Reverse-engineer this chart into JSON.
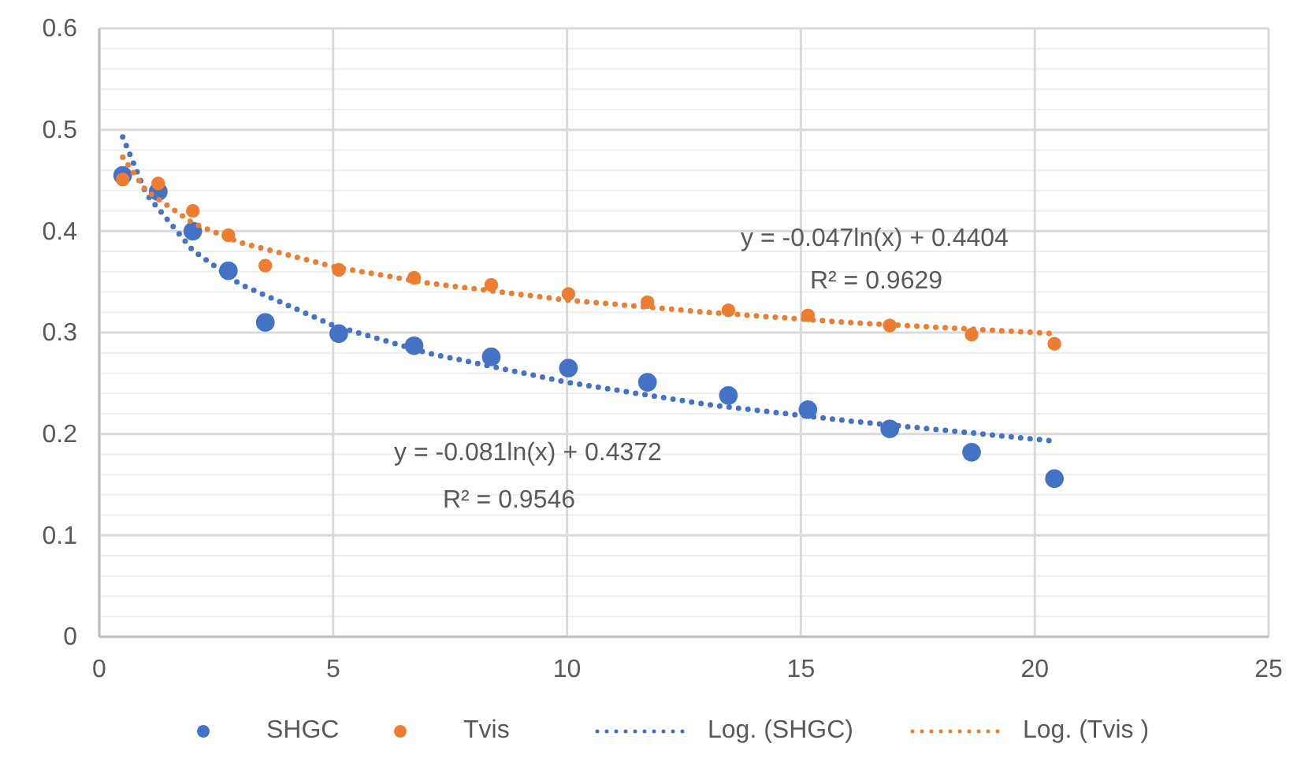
{
  "chart_data": {
    "type": "scatter",
    "xlim": [
      0,
      25
    ],
    "xticks": [
      0,
      5,
      10,
      15,
      20,
      25
    ],
    "ylim": [
      0,
      0.6
    ],
    "yticks": [
      0,
      {
        "value": 0.02,
        "label": null
      },
      {
        "value": 0.04,
        "label": null
      },
      {
        "value": 0.06,
        "label": null
      },
      {
        "value": 0.08,
        "label": null
      },
      0.1,
      {
        "value": 0.12,
        "label": null
      },
      {
        "value": 0.14,
        "label": null
      },
      {
        "value": 0.16,
        "label": null
      },
      {
        "value": 0.18,
        "label": null
      },
      0.2,
      {
        "value": 0.22,
        "label": null
      },
      {
        "value": 0.24,
        "label": null
      },
      {
        "value": 0.26,
        "label": null
      },
      {
        "value": 0.28,
        "label": null
      },
      0.3,
      {
        "value": 0.32,
        "label": null
      },
      {
        "value": 0.34,
        "label": null
      },
      {
        "value": 0.36,
        "label": null
      },
      {
        "value": 0.38,
        "label": null
      },
      0.4,
      {
        "value": 0.42,
        "label": null
      },
      {
        "value": 0.44,
        "label": null
      },
      {
        "value": 0.46,
        "label": null
      },
      {
        "value": 0.48,
        "label": null
      },
      0.5,
      {
        "value": 0.52,
        "label": null
      },
      {
        "value": 0.54,
        "label": null
      },
      {
        "value": 0.56,
        "label": null
      },
      {
        "value": 0.58,
        "label": null
      },
      0.6
    ],
    "grid": true,
    "legend": "bottom",
    "series": [
      {
        "name": "SHGC",
        "marker": "circle",
        "color": "#4472c4",
        "x": [
          0.5,
          1.26,
          2.0,
          2.76,
          3.55,
          5.12,
          6.73,
          8.38,
          10.03,
          11.72,
          13.45,
          15.15,
          16.9,
          18.65,
          20.42
        ],
        "values": [
          0.455,
          0.439,
          0.4,
          0.361,
          0.31,
          0.299,
          0.287,
          0.276,
          0.265,
          0.251,
          0.238,
          0.224,
          0.205,
          0.182,
          0.156
        ]
      },
      {
        "name": "Tvis",
        "marker": "circle",
        "color": "#ed7d31",
        "x": [
          0.5,
          1.26,
          2.0,
          2.76,
          3.55,
          5.12,
          6.73,
          8.38,
          10.03,
          11.72,
          13.45,
          15.15,
          16.9,
          18.65,
          20.42
        ],
        "values": [
          0.451,
          0.447,
          0.42,
          0.396,
          0.366,
          0.362,
          0.354,
          0.347,
          0.338,
          0.33,
          0.322,
          0.317,
          0.307,
          0.298,
          0.289
        ]
      },
      {
        "name": "Log. (SHGC)",
        "type": "line",
        "line_style": "dotted",
        "color": "#4472c4",
        "x": [
          0.5,
          1,
          2,
          3,
          5,
          7,
          10,
          13,
          16,
          20.42
        ],
        "values": [
          0.493,
          0.437,
          0.381,
          0.348,
          0.307,
          0.28,
          0.251,
          0.229,
          0.213,
          0.193
        ]
      },
      {
        "name": "Log. (Tvis )",
        "type": "line",
        "line_style": "dotted",
        "color": "#ed7d31",
        "x": [
          0.5,
          1,
          2,
          3,
          5,
          7,
          10,
          13,
          16,
          20.42
        ],
        "values": [
          0.473,
          0.44,
          0.408,
          0.389,
          0.365,
          0.349,
          0.332,
          0.32,
          0.31,
          0.299
        ]
      }
    ],
    "annotations": [
      "y = -0.047ln(x) + 0.4404",
      "R² = 0.9629",
      "y = -0.081ln(x) + 0.4372",
      "R² = 0.9546"
    ]
  }
}
